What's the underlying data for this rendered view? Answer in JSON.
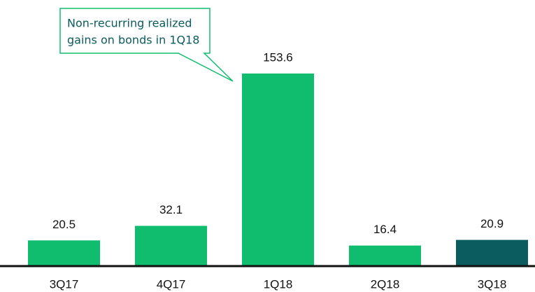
{
  "chart_data": {
    "type": "bar",
    "categories": [
      "3Q17",
      "4Q17",
      "1Q18",
      "2Q18",
      "3Q18"
    ],
    "values": [
      20.5,
      32.1,
      153.6,
      16.4,
      20.9
    ],
    "colors": [
      "#10bd6f",
      "#10bd6f",
      "#10bd6f",
      "#10bd6f",
      "#0b5c5e"
    ],
    "annotation": [
      "Non-recurring realized",
      "gains on bonds in 1Q18"
    ]
  }
}
